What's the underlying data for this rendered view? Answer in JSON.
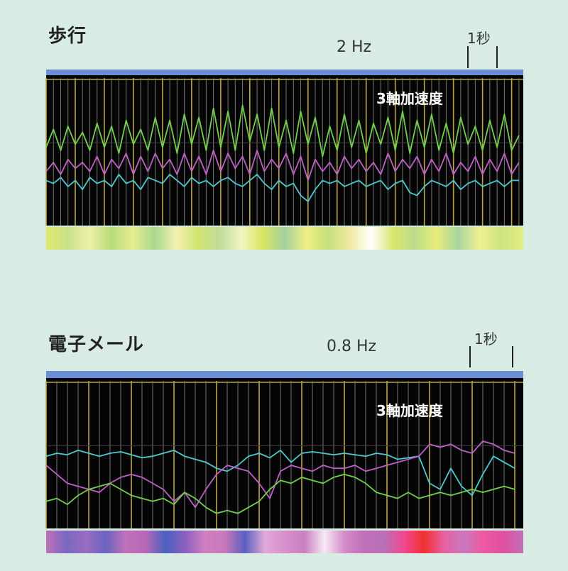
{
  "colors": {
    "background": "#d8ece3",
    "header_bar": "#6b8fd6",
    "plot_bg": "#050505",
    "major_grid": "#b9a64a",
    "minor_grid": "#777777",
    "x_series": "#6fd24a",
    "y_series": "#c060c8",
    "z_series": "#4ccad0"
  },
  "chart_data": [
    {
      "type": "line",
      "title": "歩行",
      "frequency_label": "2 Hz",
      "scale_label": "1秒",
      "signal_label": "3軸加速度",
      "x_unit": "s",
      "xlim": [
        0,
        16.4
      ],
      "ylim": [
        0,
        100
      ],
      "grid": true,
      "major_grid_interval": 1,
      "minor_per_major": 4,
      "sample_interval": 0.25,
      "series": [
        {
          "color": "#6fd24a",
          "values": [
            52,
            64,
            50,
            66,
            54,
            62,
            50,
            68,
            52,
            66,
            48,
            70,
            54,
            64,
            50,
            72,
            52,
            70,
            48,
            74,
            54,
            72,
            50,
            78,
            52,
            76,
            50,
            80,
            56,
            74,
            50,
            78,
            52,
            70,
            48,
            76,
            54,
            72,
            46,
            66,
            50,
            74,
            52,
            70,
            48,
            68,
            54,
            72,
            50,
            76,
            48,
            70,
            52,
            74,
            50,
            68,
            48,
            72,
            54,
            66,
            50,
            70,
            52,
            74,
            50,
            60
          ]
        },
        {
          "color": "#c060c8",
          "values": [
            36,
            42,
            34,
            44,
            38,
            42,
            36,
            46,
            34,
            44,
            38,
            48,
            34,
            46,
            36,
            48,
            38,
            44,
            34,
            48,
            36,
            46,
            34,
            50,
            36,
            48,
            38,
            46,
            34,
            50,
            36,
            44,
            38,
            48,
            34,
            46,
            30,
            44,
            36,
            42,
            34,
            46,
            38,
            44,
            36,
            42,
            34,
            48,
            36,
            44,
            38,
            46,
            34,
            44,
            36,
            48,
            34,
            42,
            36,
            46,
            34,
            44,
            36,
            48,
            34,
            42
          ]
        },
        {
          "color": "#4ccad0",
          "values": [
            30,
            28,
            32,
            26,
            30,
            24,
            32,
            28,
            30,
            26,
            34,
            28,
            30,
            24,
            32,
            30,
            28,
            34,
            30,
            26,
            32,
            28,
            30,
            26,
            30,
            32,
            28,
            26,
            30,
            34,
            28,
            24,
            30,
            26,
            28,
            20,
            16,
            24,
            30,
            28,
            30,
            26,
            28,
            30,
            26,
            28,
            30,
            24,
            28,
            30,
            22,
            20,
            26,
            30,
            28,
            26,
            30,
            24,
            28,
            30,
            26,
            28,
            30,
            26,
            30,
            30
          ]
        }
      ],
      "color_strip": [
        "#dfe86a",
        "#c8e08a",
        "#f0f0a8",
        "#b8dc7a",
        "#e8ec90",
        "#a8d890",
        "#f4f0b0",
        "#d0e470",
        "#c0dc98",
        "#f2f4c0",
        "#d8e660",
        "#a4d0a0",
        "#eef080",
        "#c4e07a",
        "#f0eaa0",
        "#ffffff",
        "#dae66c",
        "#bcdc8c",
        "#e8ee78",
        "#a8d4a0",
        "#f0f090",
        "#cce47c",
        "#e4ec84"
      ]
    },
    {
      "type": "line",
      "title": "電子メール",
      "frequency_label": "0.8 Hz",
      "scale_label": "1秒",
      "signal_label": "3軸加速度",
      "x_unit": "s",
      "xlim": [
        0,
        11.2
      ],
      "ylim": [
        0,
        100
      ],
      "grid": true,
      "major_grid_interval": 1,
      "minor_per_major": 4,
      "sample_interval": 0.25,
      "series": [
        {
          "color": "#4ccad0",
          "values": [
            48,
            50,
            49,
            52,
            50,
            48,
            50,
            51,
            49,
            47,
            48,
            50,
            52,
            48,
            46,
            44,
            40,
            38,
            42,
            48,
            50,
            47,
            52,
            44,
            50,
            51,
            50,
            49,
            50,
            49,
            48,
            50,
            49,
            46,
            47,
            48,
            30,
            26,
            40,
            28,
            22,
            36,
            48,
            44,
            40
          ]
        },
        {
          "color": "#c060c8",
          "values": [
            42,
            36,
            30,
            28,
            26,
            24,
            30,
            34,
            36,
            34,
            30,
            26,
            18,
            24,
            14,
            26,
            36,
            42,
            40,
            38,
            30,
            20,
            38,
            42,
            40,
            38,
            42,
            40,
            40,
            42,
            38,
            40,
            42,
            44,
            46,
            48,
            56,
            54,
            56,
            52,
            50,
            58,
            56,
            52,
            50
          ]
        },
        {
          "color": "#6fd24a",
          "values": [
            18,
            20,
            16,
            22,
            26,
            28,
            30,
            26,
            22,
            20,
            18,
            20,
            16,
            24,
            20,
            14,
            10,
            12,
            10,
            14,
            18,
            26,
            32,
            30,
            34,
            32,
            30,
            34,
            36,
            34,
            30,
            24,
            22,
            20,
            24,
            20,
            22,
            24,
            22,
            24,
            26,
            24,
            26,
            28,
            26
          ]
        }
      ],
      "color_strip": [
        "#c070b8",
        "#7a68c0",
        "#9a6cc0",
        "#6a64c0",
        "#c070b8",
        "#b868b8",
        "#4a60c0",
        "#8a60c0",
        "#d080c0",
        "#c878bc",
        "#5a60c0",
        "#e0a8d8",
        "#d890cc",
        "#c880c0",
        "#f8e8f4",
        "#d48cc8",
        "#c070b8",
        "#b870b8",
        "#f04890",
        "#f03030",
        "#e860a0",
        "#c878c0",
        "#f058a0",
        "#e050a0",
        "#c070b8"
      ]
    }
  ]
}
